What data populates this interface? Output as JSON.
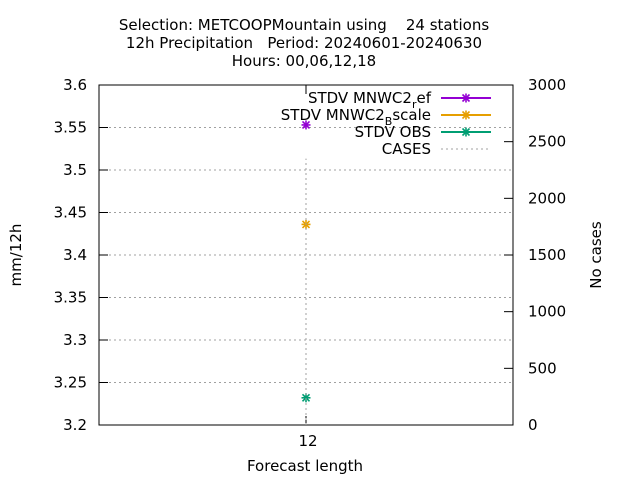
{
  "chart_data": {
    "type": "scatter",
    "title_lines": [
      "Selection: METCOOPMountain using    24 stations",
      "12h Precipitation   Period: 20240601-20240630",
      "Hours: 00,06,12,18"
    ],
    "xlabel": "Forecast length",
    "ylabel": "mm/12h",
    "y2label": "No cases",
    "x_ticks": [
      "12"
    ],
    "x": [
      12
    ],
    "ylim": [
      3.2,
      3.6
    ],
    "y_ticks": [
      3.2,
      3.25,
      3.3,
      3.35,
      3.4,
      3.45,
      3.5,
      3.55,
      3.6
    ],
    "y_tick_labels": [
      "3.2",
      "3.25",
      "3.3",
      "3.35",
      "3.4",
      "3.45",
      "3.5",
      "3.55",
      "3.6"
    ],
    "y2lim": [
      0,
      3000
    ],
    "y2_ticks": [
      0,
      500,
      1000,
      1500,
      2000,
      2500,
      3000
    ],
    "y2_tick_labels": [
      "0",
      "500",
      "1000",
      "1500",
      "2000",
      "2500",
      "3000"
    ],
    "grid": true,
    "legend_position": "top-right",
    "series": [
      {
        "name_main": "STDV MNWC2",
        "name_sub": "r",
        "name_rest": "ef",
        "color": "#9400d3",
        "values": [
          3.553
        ],
        "axis": "y"
      },
      {
        "name_main": "STDV MNWC2",
        "name_sub": "B",
        "name_rest": "scale",
        "color": "#e69f00",
        "values": [
          3.436
        ],
        "axis": "y"
      },
      {
        "name_main": "STDV OBS",
        "name_sub": "",
        "name_rest": "",
        "color": "#009e73",
        "values": [
          3.232
        ],
        "axis": "y"
      },
      {
        "name_main": "CASES",
        "name_sub": "",
        "name_rest": "",
        "color": "#a0a0a0",
        "values": [
          2350
        ],
        "axis": "y2",
        "dashed": true
      }
    ]
  }
}
